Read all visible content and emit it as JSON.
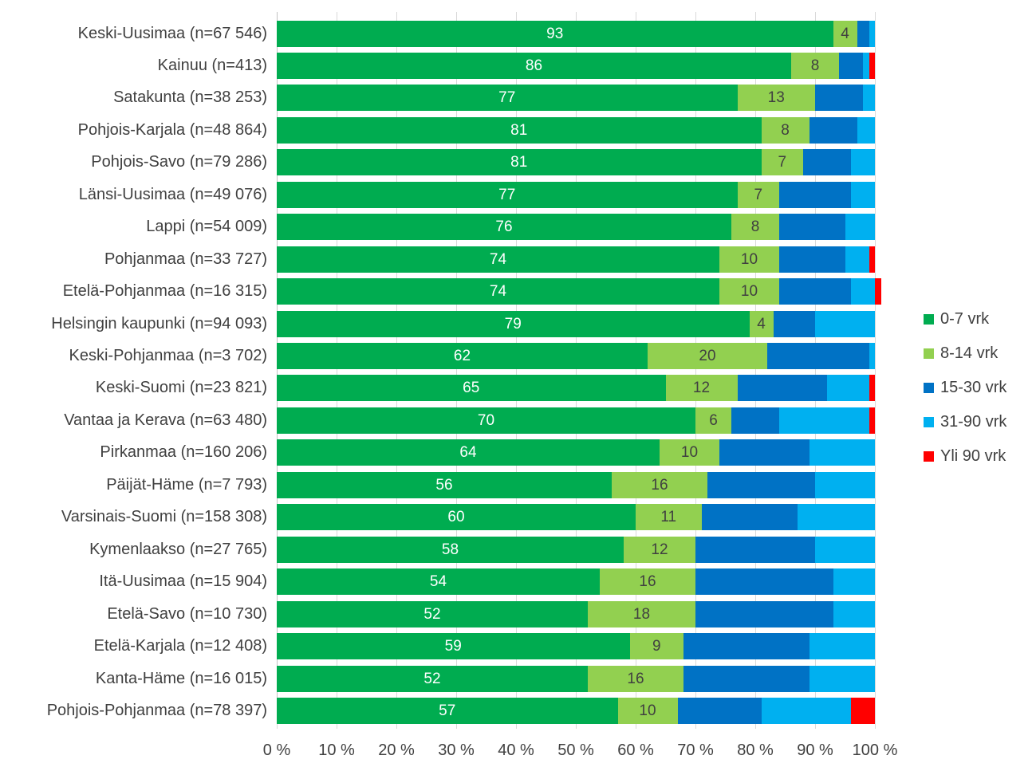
{
  "chart_data": {
    "type": "bar",
    "variant": "horizontal_stacked_100pct",
    "title": "",
    "xlabel": "",
    "ylabel": "",
    "xlim": [
      0,
      100
    ],
    "grid": true,
    "legend_position": "right",
    "x_tick_labels": [
      "0 %",
      "10 %",
      "20 %",
      "30 %",
      "40 %",
      "50 %",
      "60 %",
      "70 %",
      "80 %",
      "90 %",
      "100 %"
    ],
    "categories": [
      "Keski-Uusimaa (n=67 546)",
      "Kainuu (n=413)",
      "Satakunta (n=38 253)",
      "Pohjois-Karjala (n=48 864)",
      "Pohjois-Savo (n=79 286)",
      "Länsi-Uusimaa (n=49 076)",
      "Lappi (n=54 009)",
      "Pohjanmaa (n=33 727)",
      "Etelä-Pohjanmaa (n=16 315)",
      "Helsingin kaupunki (n=94 093)",
      "Keski-Pohjanmaa (n=3 702)",
      "Keski-Suomi (n=23 821)",
      "Vantaa ja Kerava (n=63 480)",
      "Pirkanmaa (n=160 206)",
      "Päijät-Häme (n=7 793)",
      "Varsinais-Suomi (n=158 308)",
      "Kymenlaakso (n=27 765)",
      "Itä-Uusimaa (n=15 904)",
      "Etelä-Savo (n=10 730)",
      "Etelä-Karjala (n=12 408)",
      "Kanta-Häme (n=16 015)",
      "Pohjois-Pohjanmaa (n=78 397)"
    ],
    "series": [
      {
        "name": "0-7 vrk",
        "color": "#00AC50",
        "label_color": "#FFFFFF",
        "show_labels": true,
        "values": [
          93,
          86,
          77,
          81,
          81,
          77,
          76,
          74,
          74,
          79,
          62,
          65,
          70,
          64,
          56,
          60,
          58,
          54,
          52,
          59,
          52,
          57
        ]
      },
      {
        "name": "8-14 vrk",
        "color": "#92D050",
        "label_color": "#404040",
        "show_labels": true,
        "values": [
          4,
          8,
          13,
          8,
          7,
          7,
          8,
          10,
          10,
          4,
          20,
          12,
          6,
          10,
          16,
          11,
          12,
          16,
          18,
          9,
          16,
          10
        ]
      },
      {
        "name": "15-30 vrk",
        "color": "#0072C5",
        "label_color": "#FFFFFF",
        "show_labels": false,
        "values": [
          2,
          4,
          8,
          8,
          8,
          12,
          11,
          11,
          12,
          7,
          17,
          15,
          8,
          15,
          18,
          16,
          20,
          23,
          23,
          21,
          21,
          14
        ]
      },
      {
        "name": "31-90 vrk",
        "color": "#00B0F0",
        "label_color": "#FFFFFF",
        "show_labels": false,
        "values": [
          1,
          1,
          2,
          3,
          4,
          4,
          5,
          4,
          4,
          10,
          1,
          7,
          15,
          11,
          10,
          13,
          10,
          7,
          7,
          11,
          11,
          15
        ]
      },
      {
        "name": "Yli 90 vrk",
        "color": "#FF0000",
        "label_color": "#FFFFFF",
        "show_labels": false,
        "values": [
          0,
          1,
          0,
          0,
          0,
          0,
          0,
          1,
          1,
          0,
          0,
          1,
          1,
          0,
          0,
          0,
          0,
          0,
          0,
          0,
          0,
          4
        ]
      }
    ],
    "unit": "%"
  },
  "styles": {
    "text_color": "#404040",
    "gridline_color": "#D9D9D9",
    "background": "#FFFFFF"
  }
}
